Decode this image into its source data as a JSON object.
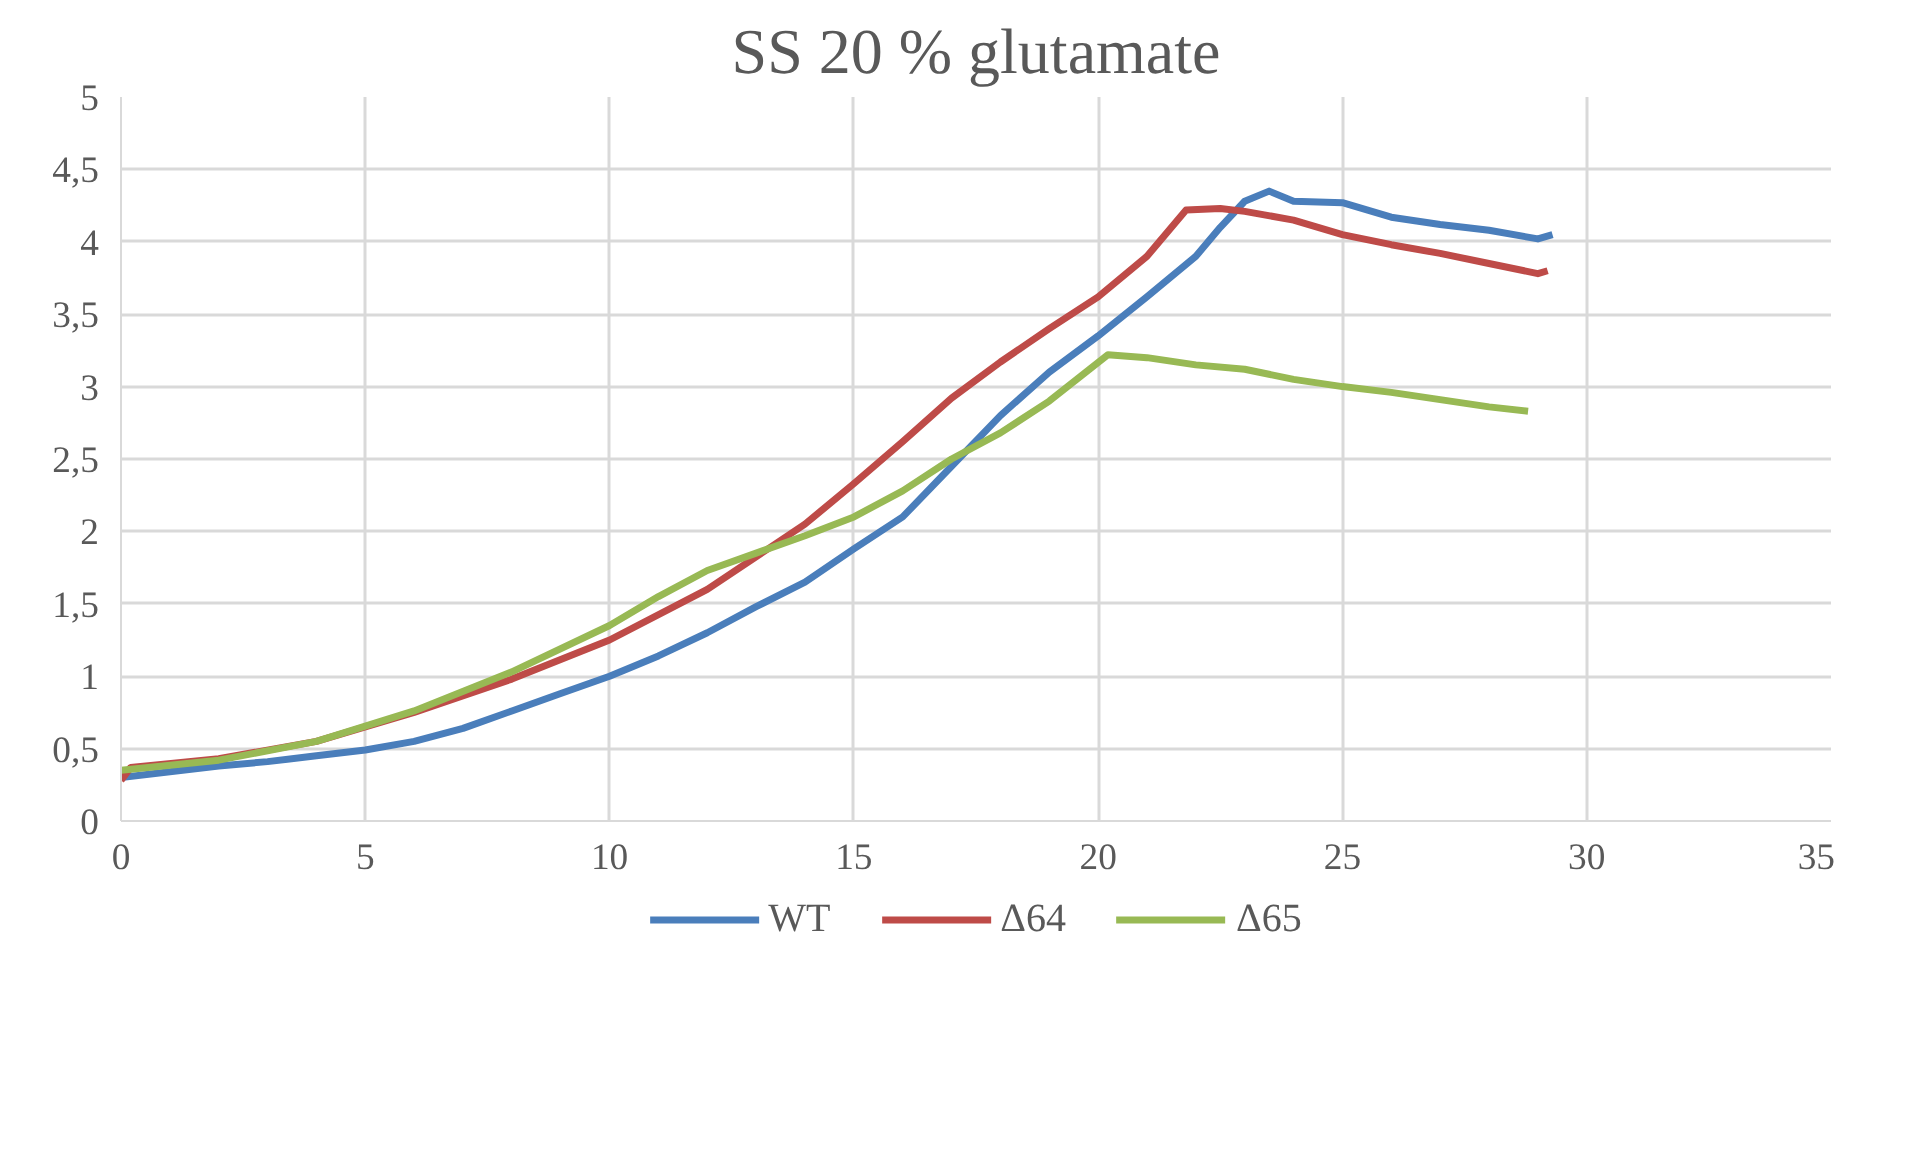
{
  "chart_data": {
    "type": "line",
    "title": "SS 20 % glutamate",
    "xlim": [
      0,
      35
    ],
    "xticks": [
      0,
      5,
      10,
      15,
      20,
      25,
      30,
      35
    ],
    "ylim": [
      0,
      5
    ],
    "yticks": [
      0,
      {
        "value": 0.5,
        "label": "0,5"
      },
      1,
      {
        "value": 1.5,
        "label": "1,5"
      },
      2,
      {
        "value": 2.5,
        "label": "2,5"
      },
      3,
      {
        "value": 3.5,
        "label": "3,5"
      },
      4,
      {
        "value": 4.5,
        "label": "4,5"
      },
      5
    ],
    "grid": true,
    "legend": "bottom",
    "line_style": "solid",
    "series": [
      {
        "name": "WT",
        "color": "#4a7ebb",
        "x": [
          0,
          1,
          2,
          3,
          4,
          5,
          6,
          7,
          8,
          9,
          10,
          11,
          12,
          13,
          14,
          15,
          16,
          17,
          18,
          19,
          20,
          21,
          22,
          22.5,
          23,
          23.5,
          24,
          25,
          26,
          27,
          28,
          29,
          29.3
        ],
        "values": [
          0.3,
          0.34,
          0.38,
          0.41,
          0.45,
          0.49,
          0.55,
          0.64,
          0.76,
          0.88,
          1.0,
          1.14,
          1.3,
          1.48,
          1.65,
          1.88,
          2.1,
          2.45,
          2.8,
          3.1,
          3.35,
          3.62,
          3.9,
          4.1,
          4.28,
          4.35,
          4.28,
          4.27,
          4.17,
          4.12,
          4.08,
          4.02,
          4.05
        ]
      },
      {
        "name": "Δ64",
        "color": "#be4b48",
        "x": [
          0,
          0.2,
          2,
          4,
          6,
          8,
          10,
          12,
          14,
          15,
          16,
          17,
          18,
          19,
          20,
          21,
          21.8,
          22.5,
          23,
          24,
          25,
          26,
          27,
          28,
          29,
          29.2
        ],
        "values": [
          0.28,
          0.37,
          0.43,
          0.55,
          0.75,
          0.98,
          1.25,
          1.6,
          2.05,
          2.33,
          2.62,
          2.92,
          3.17,
          3.4,
          3.62,
          3.9,
          4.22,
          4.23,
          4.21,
          4.15,
          4.05,
          3.98,
          3.92,
          3.85,
          3.78,
          3.8
        ]
      },
      {
        "name": "Δ65",
        "color": "#98b954",
        "x": [
          0,
          2,
          4,
          6,
          8,
          10,
          11,
          12,
          13,
          14,
          15,
          16,
          17,
          18,
          19,
          20.2,
          21,
          22,
          23,
          24,
          25,
          26,
          27,
          28,
          28.8
        ],
        "values": [
          0.35,
          0.42,
          0.55,
          0.76,
          1.03,
          1.35,
          1.55,
          1.73,
          1.85,
          1.97,
          2.1,
          2.28,
          2.5,
          2.68,
          2.9,
          3.22,
          3.2,
          3.15,
          3.12,
          3.05,
          3.0,
          2.96,
          2.91,
          2.86,
          2.83
        ]
      }
    ]
  }
}
